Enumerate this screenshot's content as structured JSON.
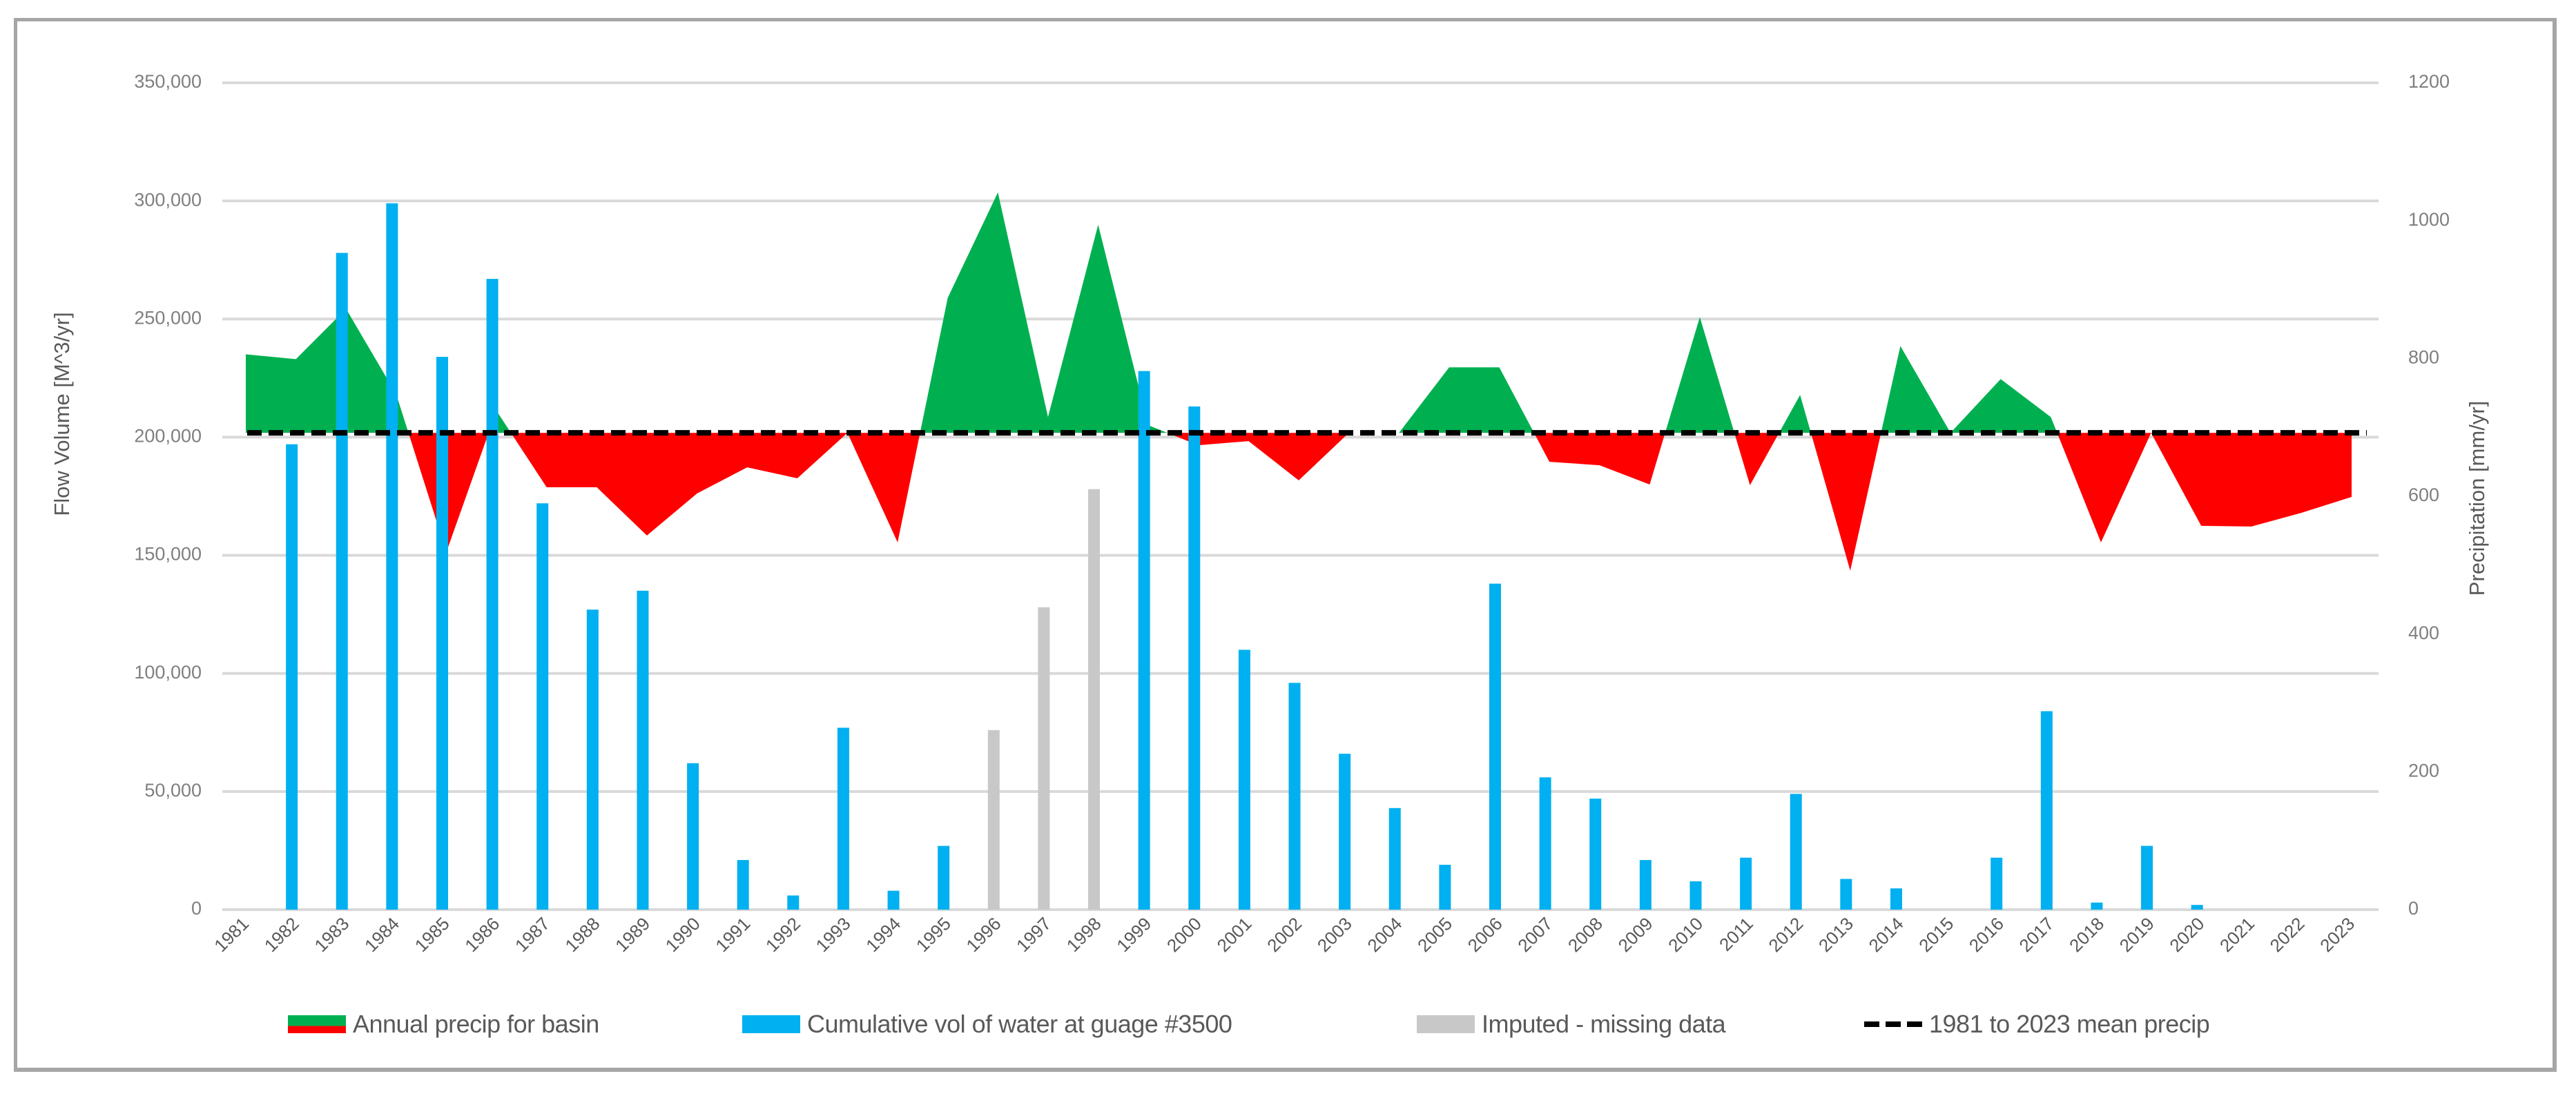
{
  "chart_data": {
    "type": "bar+area",
    "title": "",
    "xlabel": "",
    "ylabel": "Flow Volume [M^3/yr]",
    "y2label": "Precipitation [mm/yr]",
    "ylim": [
      0,
      350000
    ],
    "y2lim": [
      0,
      1200
    ],
    "yticks": [
      "0",
      "50,000",
      "100,000",
      "150,000",
      "200,000",
      "250,000",
      "300,000",
      "350,000"
    ],
    "y2ticks": [
      "0",
      "200",
      "400",
      "600",
      "800",
      "1000",
      "1200"
    ],
    "grid": true,
    "legend_position": "bottom",
    "categories": [
      "1981",
      "1982",
      "1983",
      "1984",
      "1985",
      "1986",
      "1987",
      "1988",
      "1989",
      "1990",
      "1991",
      "1992",
      "1993",
      "1994",
      "1995",
      "1996",
      "1997",
      "1998",
      "1999",
      "2000",
      "2001",
      "2002",
      "2003",
      "2004",
      "2005",
      "2006",
      "2007",
      "2008",
      "2009",
      "2010",
      "2011",
      "2012",
      "2013",
      "2014",
      "2015",
      "2016",
      "2017",
      "2018",
      "2019",
      "2020",
      "2021",
      "2022",
      "2023"
    ],
    "mean_precip": 692,
    "series": [
      {
        "name": "Annual precip for basin",
        "type": "area",
        "axis": "right",
        "color_above": "#00B050",
        "color_below": "#FF0000",
        "values": [
          806,
          799,
          872,
          748,
          519,
          724,
          613,
          613,
          543,
          604,
          642,
          626,
          692,
          533,
          888,
          1041,
          715,
          994,
          703,
          674,
          680,
          623,
          692,
          692,
          787,
          787,
          650,
          645,
          617,
          860,
          616,
          747,
          492,
          818,
          692,
          770,
          715,
          533,
          692,
          557,
          556,
          576,
          599
        ]
      },
      {
        "name": "Cumulative vol of water at guage #3500",
        "type": "bar",
        "axis": "left",
        "color": "#00B0F0",
        "values": [
          0,
          197000,
          278000,
          299000,
          234000,
          267000,
          172000,
          127000,
          135000,
          62000,
          21000,
          6000,
          77000,
          8000,
          27000,
          null,
          null,
          null,
          228000,
          213000,
          110000,
          96000,
          66000,
          43000,
          19000,
          138000,
          56000,
          47000,
          21000,
          12000,
          22000,
          49000,
          13000,
          9000,
          0,
          22000,
          84000,
          3000,
          27000,
          2000,
          0,
          0,
          0
        ]
      },
      {
        "name": "Imputed - missing data",
        "type": "bar",
        "axis": "left",
        "color": "#C8C8C8",
        "values": [
          null,
          null,
          null,
          null,
          null,
          null,
          null,
          null,
          null,
          null,
          null,
          null,
          null,
          null,
          null,
          76000,
          128000,
          178000,
          null,
          null,
          null,
          null,
          null,
          null,
          null,
          null,
          null,
          null,
          null,
          null,
          null,
          null,
          null,
          null,
          null,
          null,
          null,
          null,
          null,
          null,
          null,
          null,
          null
        ]
      },
      {
        "name": "1981  to 2023 mean precip",
        "type": "line",
        "style": "dashed",
        "axis": "right",
        "color": "#000000",
        "value": 692
      }
    ]
  },
  "legend": {
    "items": [
      {
        "label": "Annual precip for basin",
        "swatch": "green-red-area"
      },
      {
        "label": "Cumulative vol of water at guage #3500",
        "swatch": "blue-bar"
      },
      {
        "label": "Imputed - missing data",
        "swatch": "gray-bar"
      },
      {
        "label": "1981  to 2023 mean precip",
        "swatch": "black-dashed-line"
      }
    ]
  },
  "colors": {
    "above_mean": "#00B050",
    "below_mean": "#FF0000",
    "flow_bar": "#00B0F0",
    "imputed_bar": "#C8C8C8",
    "mean_line": "#000000",
    "gridline": "#D9D9D9",
    "frame": "#A6A6A6"
  }
}
